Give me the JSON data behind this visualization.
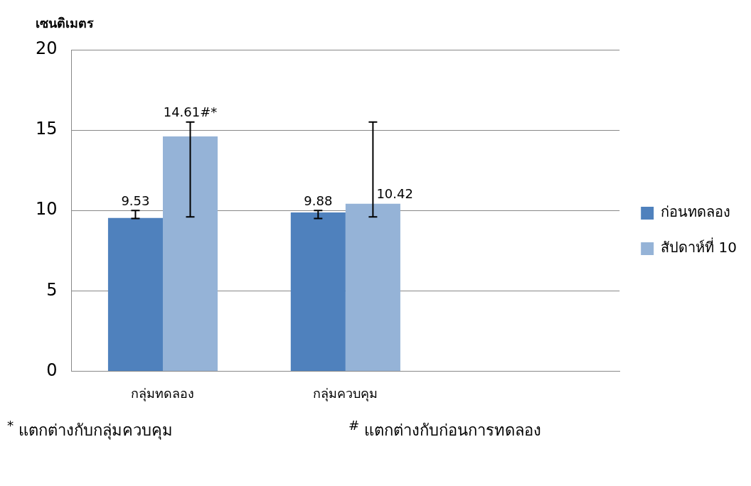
{
  "chart_data": {
    "type": "bar",
    "ylabel": "เซนติเมตร",
    "categories": [
      "กลุ่มทดลอง",
      "กลุ่มควบคุม",
      null
    ],
    "series": [
      {
        "name": "ก่อนทดลอง",
        "color": "#4f81bd",
        "values": [
          9.53,
          9.88,
          null
        ],
        "errors": [
          [
            9.5,
            10.0
          ],
          [
            9.5,
            10.0
          ],
          null
        ],
        "value_labels": [
          "9.53",
          "9.88",
          null
        ]
      },
      {
        "name": "สัปดาห์ที่ 10",
        "color": "#95b3d7",
        "values": [
          14.61,
          10.42,
          null
        ],
        "errors": [
          [
            9.6,
            15.5
          ],
          [
            9.6,
            15.5
          ],
          null
        ],
        "value_labels": [
          "14.61#*",
          "10.42",
          null
        ]
      }
    ],
    "ylim": [
      0,
      20
    ],
    "yticks": [
      0,
      5,
      10,
      15,
      20
    ],
    "grid": "y",
    "legend": "right",
    "annotations": [
      "$^{*}$ แตกต่างกับกลุ่มควบคุม",
      "$^{#}$ แตกต่างกับก่อนการทดลอง"
    ]
  }
}
